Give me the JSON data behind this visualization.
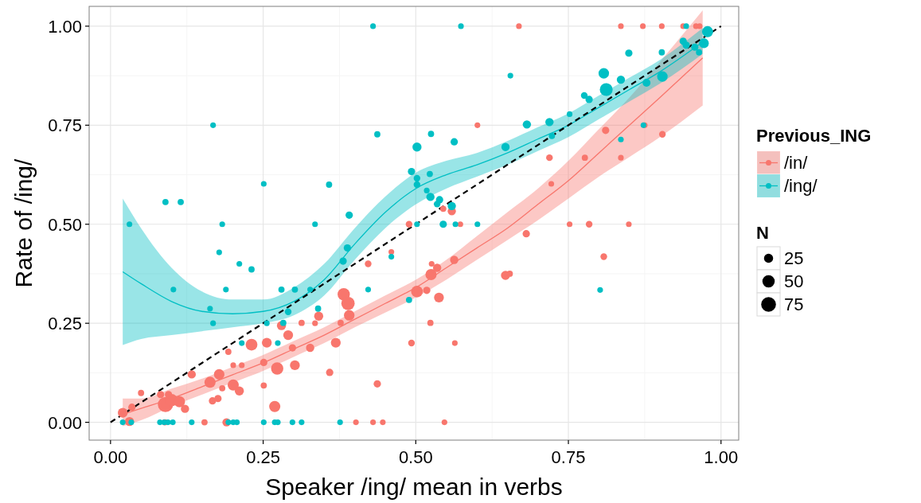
{
  "chart_data": {
    "type": "bubble",
    "xlabel": "Speaker /ing/ mean in verbs",
    "ylabel": "Rate of /ing/",
    "legend_title": "Previous_ING",
    "legend": "right",
    "grid": true,
    "marker": "circle",
    "annotations": [
      "N"
    ],
    "size_legend": [
      25,
      50,
      75
    ],
    "xlim": [
      -0.035,
      1.029
    ],
    "ylim": [
      -0.045,
      1.05
    ],
    "xticks": [
      {
        "value": 0,
        "label": "0.00"
      },
      {
        "value": 0.25,
        "label": "0.25"
      },
      {
        "value": 0.5,
        "label": "0.50"
      },
      {
        "value": 0.75,
        "label": "0.75"
      },
      {
        "value": 1,
        "label": "1.00"
      }
    ],
    "yticks": [
      {
        "value": 0,
        "label": "0.00"
      },
      {
        "value": 0.25,
        "label": "0.25"
      },
      {
        "value": 0.5,
        "label": "0.50"
      },
      {
        "value": 0.75,
        "label": "0.75"
      },
      {
        "value": 1,
        "label": "1.00"
      }
    ],
    "series": [
      {
        "name": "/in/",
        "color": "#f8766d",
        "x": [
          0.02,
          0.031,
          0.035,
          0.05,
          0.09,
          0.1,
          0.113,
          0.122,
          0.082,
          0.095,
          0.089,
          0.133,
          0.163,
          0.178,
          0.167,
          0.176,
          0.183,
          0.201,
          0.211,
          0.154,
          0.19,
          0.193,
          0.201,
          0.215,
          0.231,
          0.256,
          0.251,
          0.251,
          0.273,
          0.269,
          0.302,
          0.298,
          0.291,
          0.28,
          0.313,
          0.335,
          0.341,
          0.327,
          0.359,
          0.369,
          0.382,
          0.389,
          0.391,
          0.377,
          0.422,
          0.46,
          0.437,
          0.493,
          0.502,
          0.402,
          0.43,
          0.446,
          0.525,
          0.535,
          0.526,
          0.563,
          0.518,
          0.538,
          0.524,
          0.564,
          0.647,
          0.654,
          0.808,
          0.547,
          0.545,
          0.559,
          0.573,
          0.681,
          0.719,
          0.777,
          0.722,
          0.752,
          0.784,
          0.849,
          0.811,
          0.836,
          0.875,
          0.904,
          0.601,
          0.669,
          0.836,
          0.872,
          0.903,
          0.938,
          0.959,
          0.965,
          0.489
        ],
        "values": [
          0.024,
          0.002,
          0.038,
          0.074,
          0.045,
          0.056,
          0.052,
          0.034,
          0.07,
          0.07,
          0,
          0.121,
          0.101,
          0.121,
          0.054,
          0.06,
          0.086,
          0.094,
          0.079,
          0,
          0,
          0.178,
          0.144,
          0.144,
          0.196,
          0.201,
          0.151,
          0.093,
          0.136,
          0.04,
          0.144,
          0.188,
          0.22,
          0.244,
          0.251,
          0.25,
          0.268,
          0.188,
          0.126,
          0.201,
          0.323,
          0.3,
          0.27,
          0.251,
          0.4,
          0.43,
          0.097,
          0.2,
          0.33,
          0,
          0,
          0,
          0.373,
          0.39,
          0.4,
          0.41,
          0.333,
          0.315,
          0.251,
          0.2,
          0.371,
          0.375,
          0.418,
          0,
          0.539,
          0.533,
          0.5,
          0.476,
          0.668,
          0.668,
          0.602,
          0.5,
          0.5,
          0.5,
          0.737,
          0.668,
          0.75,
          0.727,
          0.75,
          1,
          1,
          1,
          1,
          1,
          1,
          1,
          0.5
        ],
        "sizes": [
          30,
          25,
          15,
          10,
          80,
          50,
          40,
          20,
          15,
          15,
          10,
          20,
          40,
          35,
          15,
          15,
          10,
          40,
          25,
          10,
          20,
          10,
          8,
          8,
          45,
          30,
          15,
          10,
          50,
          40,
          30,
          15,
          30,
          25,
          10,
          8,
          25,
          20,
          15,
          30,
          50,
          60,
          35,
          10,
          12,
          8,
          15,
          12,
          45,
          8,
          8,
          8,
          40,
          20,
          8,
          20,
          15,
          30,
          10,
          8,
          25,
          10,
          12,
          8,
          10,
          20,
          8,
          15,
          12,
          10,
          8,
          8,
          12,
          8,
          15,
          8,
          8,
          12,
          8,
          8,
          8,
          8,
          8,
          8,
          8,
          8,
          12
        ]
      },
      {
        "name": "/ing/",
        "color": "#00bfc4",
        "x": [
          0.43,
          0.168,
          0.437,
          0.502,
          0.493,
          0.502,
          0.502,
          0.251,
          0.358,
          0.09,
          0.115,
          0.031,
          0.183,
          0.335,
          0.391,
          0.178,
          0.388,
          0.502,
          0.211,
          0.231,
          0.381,
          0.103,
          0.189,
          0.163,
          0.168,
          0.28,
          0.302,
          0.327,
          0.291,
          0.34,
          0.283,
          0.256,
          0.215,
          0.274,
          0.422,
          0.46,
          0.489,
          0.02,
          0.034,
          0.081,
          0.088,
          0.094,
          0.102,
          0.133,
          0.193,
          0.201,
          0.207,
          0.251,
          0.269,
          0.274,
          0.298,
          0.313,
          0.376,
          0.574,
          0.943,
          0.978,
          0.972,
          0.938,
          0.943,
          0.957,
          0.964,
          0.903,
          0.849,
          0.655,
          0.808,
          0.812,
          0.836,
          0.878,
          0.904,
          0.776,
          0.784,
          0.752,
          0.719,
          0.682,
          0.647,
          0.723,
          0.873,
          0.836,
          0.525,
          0.563,
          0.523,
          0.518,
          0.524,
          0.539,
          0.535,
          0.559,
          0.545,
          0.565,
          0.601,
          0.802
        ],
        "values": [
          1,
          0.75,
          0.727,
          0.695,
          0.633,
          0.616,
          0.6,
          0.602,
          0.6,
          0.556,
          0.556,
          0.5,
          0.5,
          0.5,
          0.523,
          0.429,
          0.44,
          0.5,
          0.4,
          0.386,
          0.407,
          0.335,
          0.335,
          0.287,
          0.25,
          0.335,
          0.335,
          0.335,
          0.279,
          0.287,
          0.251,
          0.25,
          0.2,
          0.2,
          0.335,
          0.418,
          0.309,
          0,
          0,
          0,
          0,
          0,
          0,
          0,
          0,
          0,
          0,
          0,
          0,
          0,
          0,
          0,
          0,
          1,
          1,
          0.986,
          0.957,
          0.962,
          0.952,
          0.947,
          0.934,
          0.934,
          0.932,
          0.875,
          0.881,
          0.84,
          0.865,
          0.857,
          0.873,
          0.825,
          0.815,
          0.778,
          0.758,
          0.752,
          0.695,
          0.723,
          0.75,
          0.714,
          0.728,
          0.708,
          0.627,
          0.585,
          0.569,
          0.562,
          0.551,
          0.546,
          0.5,
          0.5,
          0.5,
          0.334
        ],
        "sizes": [
          8,
          8,
          10,
          25,
          15,
          12,
          12,
          8,
          10,
          10,
          10,
          8,
          8,
          8,
          15,
          8,
          15,
          8,
          8,
          10,
          15,
          8,
          8,
          8,
          8,
          10,
          10,
          8,
          12,
          10,
          10,
          8,
          8,
          8,
          8,
          8,
          10,
          8,
          8,
          8,
          8,
          8,
          8,
          8,
          8,
          8,
          8,
          8,
          8,
          8,
          8,
          8,
          8,
          8,
          8,
          40,
          30,
          15,
          15,
          15,
          10,
          10,
          15,
          8,
          35,
          55,
          20,
          18,
          35,
          12,
          15,
          8,
          20,
          20,
          20,
          10,
          8,
          8,
          10,
          15,
          10,
          8,
          20,
          15,
          12,
          20,
          15,
          8,
          8,
          8
        ]
      },
      {
        "type": "line",
        "marker": "none",
        "color": "#f8766d",
        "x": [
          0.02,
          0.05,
          0.1,
          0.15,
          0.2,
          0.25,
          0.3,
          0.35,
          0.4,
          0.45,
          0.5,
          0.55,
          0.6,
          0.65,
          0.7,
          0.75,
          0.8,
          0.85,
          0.9,
          0.97
        ],
        "values": [
          0.02,
          0.035,
          0.06,
          0.09,
          0.12,
          0.15,
          0.185,
          0.22,
          0.26,
          0.3,
          0.34,
          0.39,
          0.44,
          0.49,
          0.55,
          0.61,
          0.68,
          0.75,
          0.82,
          0.92
        ],
        "lower": [
          -0.01,
          0.005,
          0.04,
          0.07,
          0.1,
          0.13,
          0.165,
          0.2,
          0.24,
          0.277,
          0.315,
          0.36,
          0.41,
          0.46,
          0.51,
          0.565,
          0.62,
          0.67,
          0.72,
          0.8
        ],
        "upper": [
          0.06,
          0.06,
          0.085,
          0.11,
          0.14,
          0.17,
          0.205,
          0.24,
          0.28,
          0.32,
          0.36,
          0.41,
          0.47,
          0.53,
          0.59,
          0.66,
          0.74,
          0.82,
          0.91,
          1.04
        ]
      },
      {
        "type": "line",
        "marker": "none",
        "color": "#00bfc4",
        "x": [
          0.02,
          0.05,
          0.1,
          0.15,
          0.2,
          0.25,
          0.3,
          0.35,
          0.4,
          0.45,
          0.5,
          0.55,
          0.6,
          0.65,
          0.7,
          0.75,
          0.8,
          0.85,
          0.9,
          0.97
        ],
        "values": [
          0.38,
          0.35,
          0.305,
          0.28,
          0.274,
          0.28,
          0.305,
          0.36,
          0.45,
          0.53,
          0.59,
          0.625,
          0.65,
          0.68,
          0.715,
          0.75,
          0.795,
          0.84,
          0.885,
          0.96
        ],
        "lower": [
          0.195,
          0.21,
          0.22,
          0.23,
          0.24,
          0.25,
          0.27,
          0.32,
          0.41,
          0.49,
          0.55,
          0.59,
          0.62,
          0.65,
          0.685,
          0.72,
          0.765,
          0.81,
          0.855,
          0.93
        ],
        "upper": [
          0.565,
          0.49,
          0.39,
          0.33,
          0.31,
          0.31,
          0.34,
          0.4,
          0.49,
          0.57,
          0.63,
          0.66,
          0.68,
          0.71,
          0.745,
          0.78,
          0.825,
          0.87,
          0.915,
          0.995
        ]
      },
      {
        "type": "line",
        "marker": "none",
        "color": "#000000",
        "line_style": "dashed",
        "x": [
          0,
          1
        ],
        "values": [
          0,
          1
        ]
      }
    ]
  }
}
